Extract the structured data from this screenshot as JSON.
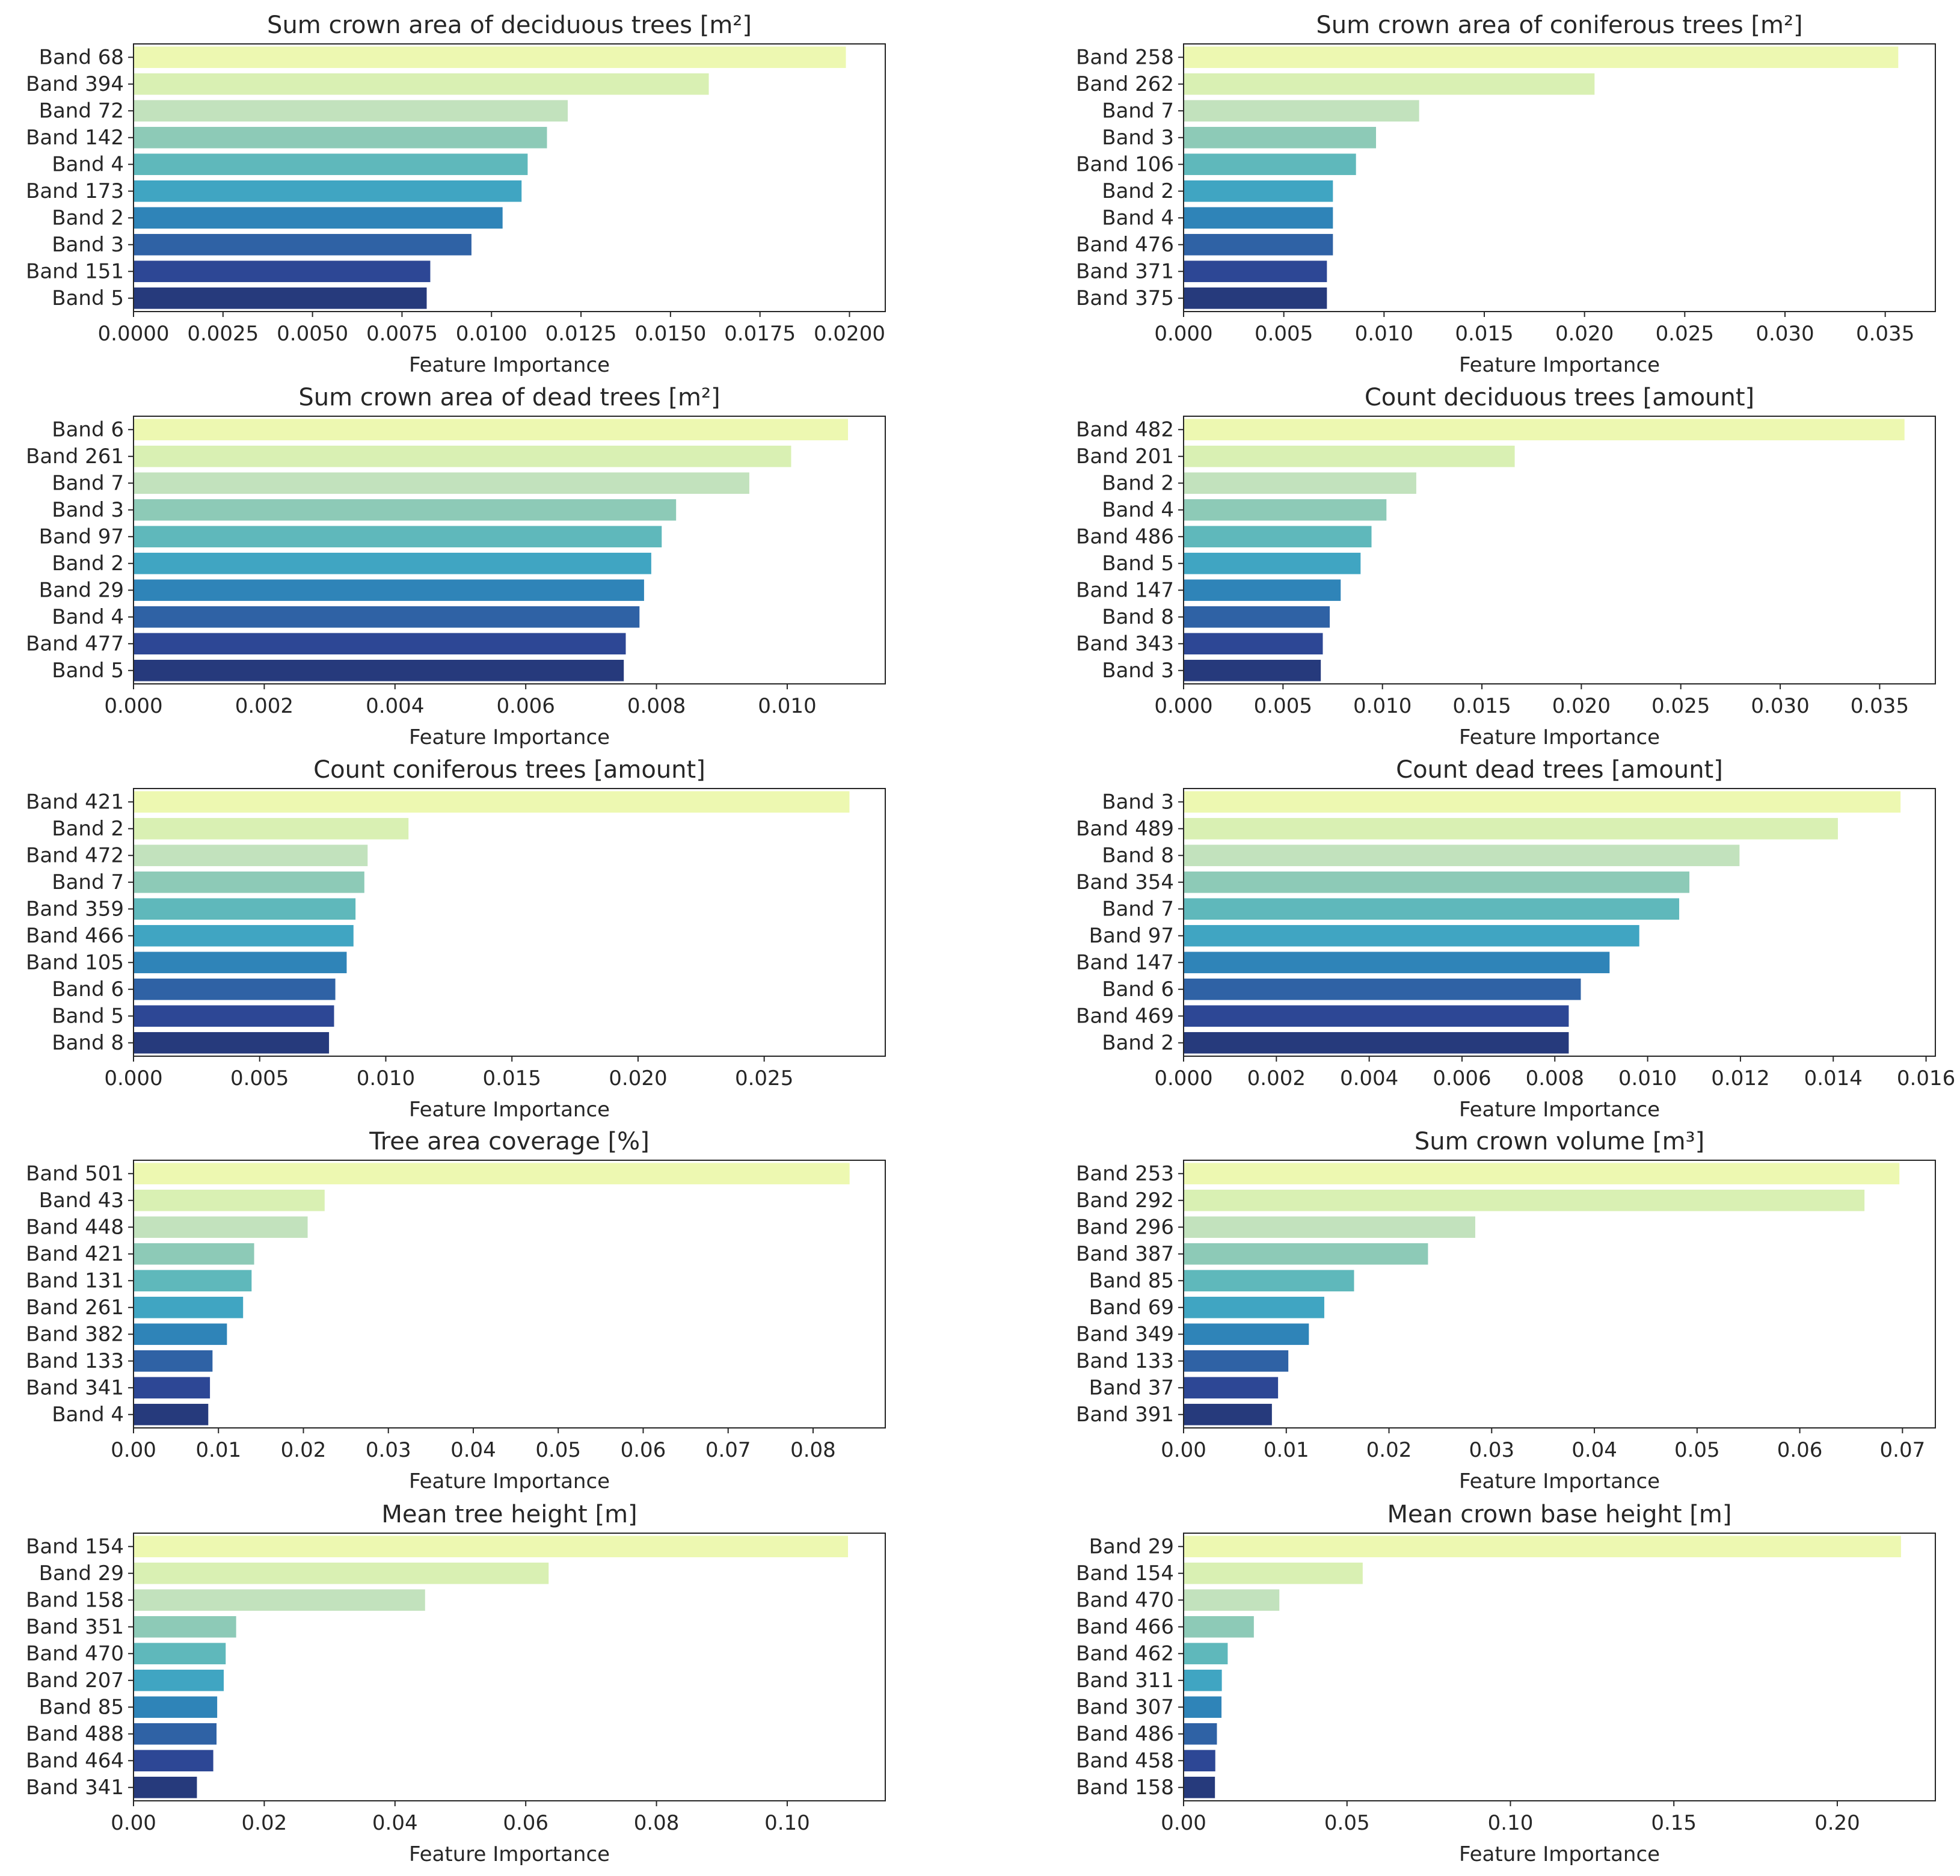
{
  "palette": [
    "#edf8b1",
    "#d9f0b3",
    "#c2e2bd",
    "#8dcab7",
    "#5fb8bb",
    "#40a5c2",
    "#2f84b8",
    "#2f62a5",
    "#2d4795",
    "#263a7c"
  ],
  "chart_data": [
    {
      "type": "bar",
      "orientation": "horizontal",
      "title": "Sum crown area of deciduous trees [m²]",
      "xlabel": "Feature Importance",
      "ylabel": "",
      "xlim": [
        0,
        0.021
      ],
      "xticks": [
        "0.0000",
        "0.0025",
        "0.0050",
        "0.0075",
        "0.0100",
        "0.0125",
        "0.0150",
        "0.0175",
        "0.0200"
      ],
      "categories": [
        "Band 68",
        "Band 394",
        "Band 72",
        "Band 142",
        "Band 4",
        "Band 173",
        "Band 2",
        "Band 3",
        "Band 151",
        "Band 5"
      ],
      "values": [
        0.0199,
        0.01607,
        0.01213,
        0.01155,
        0.01101,
        0.01084,
        0.01031,
        0.00944,
        0.00829,
        0.00819
      ]
    },
    {
      "type": "bar",
      "orientation": "horizontal",
      "title": "Sum crown area of coniferous trees [m²]",
      "xlabel": "Feature Importance",
      "ylabel": "",
      "xlim": [
        0,
        0.0375
      ],
      "xticks": [
        "0.000",
        "0.005",
        "0.010",
        "0.015",
        "0.020",
        "0.025",
        "0.030",
        "0.035"
      ],
      "categories": [
        "Band 258",
        "Band 262",
        "Band 7",
        "Band 3",
        "Band 106",
        "Band 2",
        "Band 4",
        "Band 476",
        "Band 371",
        "Band 375"
      ],
      "values": [
        0.03565,
        0.0205,
        0.01175,
        0.0096,
        0.0086,
        0.00745,
        0.00745,
        0.00745,
        0.00715,
        0.00715
      ]
    },
    {
      "type": "bar",
      "orientation": "horizontal",
      "title": "Sum crown area of dead trees [m²]",
      "xlabel": "Feature Importance",
      "ylabel": "",
      "xlim": [
        0,
        0.0115
      ],
      "xticks": [
        "0.000",
        "0.002",
        "0.004",
        "0.006",
        "0.008",
        "0.010"
      ],
      "categories": [
        "Band 6",
        "Band 261",
        "Band 7",
        "Band 3",
        "Band 97",
        "Band 2",
        "Band 29",
        "Band 4",
        "Band 477",
        "Band 5"
      ],
      "values": [
        0.01093,
        0.01006,
        0.00942,
        0.0083,
        0.00808,
        0.00792,
        0.00781,
        0.00774,
        0.00753,
        0.0075
      ]
    },
    {
      "type": "bar",
      "orientation": "horizontal",
      "title": "Count deciduous trees [amount]",
      "xlabel": "Feature Importance",
      "ylabel": "",
      "xlim": [
        0,
        0.0378
      ],
      "xticks": [
        "0.000",
        "0.005",
        "0.010",
        "0.015",
        "0.020",
        "0.025",
        "0.030",
        "0.035"
      ],
      "categories": [
        "Band 482",
        "Band 201",
        "Band 2",
        "Band 4",
        "Band 486",
        "Band 5",
        "Band 147",
        "Band 8",
        "Band 343",
        "Band 3"
      ],
      "values": [
        0.03625,
        0.01665,
        0.0117,
        0.0102,
        0.00945,
        0.0089,
        0.0079,
        0.00735,
        0.007,
        0.0069
      ]
    },
    {
      "type": "bar",
      "orientation": "horizontal",
      "title": "Count coniferous trees [amount]",
      "xlabel": "Feature Importance",
      "ylabel": "",
      "xlim": [
        0,
        0.0298
      ],
      "xticks": [
        "0.000",
        "0.005",
        "0.010",
        "0.015",
        "0.020",
        "0.025"
      ],
      "categories": [
        "Band 421",
        "Band 2",
        "Band 472",
        "Band 7",
        "Band 359",
        "Band 466",
        "Band 105",
        "Band 6",
        "Band 5",
        "Band 8"
      ],
      "values": [
        0.02838,
        0.0109,
        0.00928,
        0.00915,
        0.0088,
        0.00872,
        0.00845,
        0.008,
        0.00795,
        0.00775
      ]
    },
    {
      "type": "bar",
      "orientation": "horizontal",
      "title": "Count dead trees [amount]",
      "xlabel": "Feature Importance",
      "ylabel": "",
      "xlim": [
        0,
        0.0162
      ],
      "xticks": [
        "0.000",
        "0.002",
        "0.004",
        "0.006",
        "0.008",
        "0.010",
        "0.012",
        "0.014",
        "0.016"
      ],
      "categories": [
        "Band 3",
        "Band 489",
        "Band 8",
        "Band 354",
        "Band 7",
        "Band 97",
        "Band 147",
        "Band 6",
        "Band 469",
        "Band 2"
      ],
      "values": [
        0.01545,
        0.0141,
        0.01198,
        0.0109,
        0.01068,
        0.00982,
        0.00918,
        0.00856,
        0.0083,
        0.0083
      ]
    },
    {
      "type": "bar",
      "orientation": "horizontal",
      "title": "Tree area coverage [%]",
      "xlabel": "Feature Importance",
      "ylabel": "",
      "xlim": [
        0,
        0.0885
      ],
      "xticks": [
        "0.00",
        "0.01",
        "0.02",
        "0.03",
        "0.04",
        "0.05",
        "0.06",
        "0.07",
        "0.08"
      ],
      "categories": [
        "Band 501",
        "Band 43",
        "Band 448",
        "Band 421",
        "Band 131",
        "Band 261",
        "Band 382",
        "Band 133",
        "Band 341",
        "Band 4"
      ],
      "values": [
        0.0843,
        0.0225,
        0.0205,
        0.0142,
        0.0139,
        0.0129,
        0.011,
        0.0093,
        0.009,
        0.0088
      ]
    },
    {
      "type": "bar",
      "orientation": "horizontal",
      "title": "Sum crown volume [m³]",
      "xlabel": "Feature Importance",
      "ylabel": "",
      "xlim": [
        0,
        0.0732
      ],
      "xticks": [
        "0.00",
        "0.01",
        "0.02",
        "0.03",
        "0.04",
        "0.05",
        "0.06",
        "0.07"
      ],
      "categories": [
        "Band 253",
        "Band 292",
        "Band 296",
        "Band 387",
        "Band 85",
        "Band 69",
        "Band 349",
        "Band 133",
        "Band 37",
        "Band 391"
      ],
      "values": [
        0.0697,
        0.0663,
        0.0284,
        0.0238,
        0.0166,
        0.0137,
        0.0122,
        0.0102,
        0.0092,
        0.0086
      ]
    },
    {
      "type": "bar",
      "orientation": "horizontal",
      "title": "Mean tree height [m]",
      "xlabel": "Feature Importance",
      "ylabel": "",
      "xlim": [
        0,
        0.115
      ],
      "xticks": [
        "0.00",
        "0.02",
        "0.04",
        "0.06",
        "0.08",
        "0.10"
      ],
      "categories": [
        "Band 154",
        "Band 29",
        "Band 158",
        "Band 351",
        "Band 470",
        "Band 207",
        "Band 85",
        "Band 488",
        "Band 464",
        "Band 341"
      ],
      "values": [
        0.1093,
        0.0635,
        0.0446,
        0.0157,
        0.0141,
        0.0138,
        0.0128,
        0.0127,
        0.0122,
        0.0097
      ]
    },
    {
      "type": "bar",
      "orientation": "horizontal",
      "title": "Mean crown base height [m]",
      "xlabel": "Feature Importance",
      "ylabel": "",
      "xlim": [
        0,
        0.23
      ],
      "xticks": [
        "0.00",
        "0.05",
        "0.10",
        "0.15",
        "0.20"
      ],
      "categories": [
        "Band 29",
        "Band 154",
        "Band 470",
        "Band 466",
        "Band 462",
        "Band 311",
        "Band 307",
        "Band 486",
        "Band 458",
        "Band 158"
      ],
      "values": [
        0.2195,
        0.0548,
        0.0293,
        0.0215,
        0.0135,
        0.0117,
        0.0116,
        0.0102,
        0.0097,
        0.0096
      ]
    }
  ]
}
